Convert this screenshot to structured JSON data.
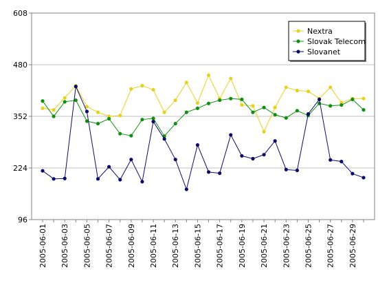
{
  "chart_data": {
    "type": "line",
    "ylim": [
      96,
      608
    ],
    "yticks": [
      96,
      224,
      352,
      480,
      608
    ],
    "grid": true,
    "legend_position": "top-right",
    "x": [
      "2005-06-01",
      "2005-06-02",
      "2005-06-03",
      "2005-06-04",
      "2005-06-05",
      "2005-06-06",
      "2005-06-07",
      "2005-06-08",
      "2005-06-09",
      "2005-06-10",
      "2005-06-11",
      "2005-06-12",
      "2005-06-13",
      "2005-06-14",
      "2005-06-15",
      "2005-06-16",
      "2005-06-17",
      "2005-06-18",
      "2005-06-19",
      "2005-06-20",
      "2005-06-21",
      "2005-06-22",
      "2005-06-23",
      "2005-06-24",
      "2005-06-25",
      "2005-06-26",
      "2005-06-27",
      "2005-06-28",
      "2005-06-29",
      "2005-06-30"
    ],
    "xtick_labels": [
      "2005-06-01",
      "2005-06-03",
      "2005-06-05",
      "2005-06-07",
      "2005-06-09",
      "2005-06-11",
      "2005-06-13",
      "2005-06-15",
      "2005-06-17",
      "2005-06-19",
      "2005-06-21",
      "2005-06-23",
      "2005-06-25",
      "2005-06-27",
      "2005-06-29"
    ],
    "series": [
      {
        "name": "Nextra",
        "color": "#e6d21e",
        "values": [
          372,
          368,
          398,
          428,
          376,
          362,
          352,
          354,
          420,
          428,
          418,
          362,
          392,
          436,
          385,
          454,
          396,
          446,
          380,
          378,
          314,
          374,
          424,
          416,
          414,
          396,
          424,
          386,
          396,
          396
        ]
      },
      {
        "name": "Slovak Telecom",
        "color": "#109010",
        "values": [
          390,
          352,
          388,
          392,
          340,
          334,
          346,
          309,
          304,
          344,
          347,
          303,
          334,
          362,
          372,
          384,
          392,
          396,
          394,
          362,
          374,
          356,
          348,
          366,
          354,
          384,
          378,
          380,
          394,
          368
        ]
      },
      {
        "name": "Slovanet",
        "color": "#0a0a6a",
        "values": [
          217,
          197,
          198,
          426,
          364,
          197,
          227,
          195,
          245,
          190,
          339,
          296,
          245,
          171,
          281,
          214,
          211,
          306,
          254,
          247,
          257,
          291,
          220,
          218,
          358,
          394,
          244,
          240,
          210,
          200
        ]
      }
    ]
  }
}
